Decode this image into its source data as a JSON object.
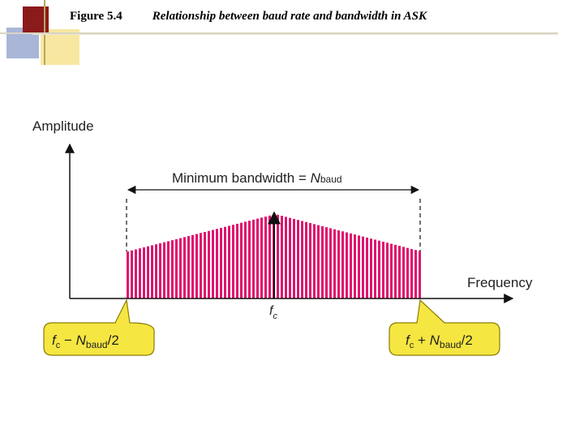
{
  "header": {
    "figure_number": "Figure 5.4",
    "figure_title": "Relationship between baud rate and bandwidth in ASK"
  },
  "diagram": {
    "y_axis_label": "Amplitude",
    "x_axis_label": "Frequency",
    "bandwidth_label_text": "Minimum bandwidth = ",
    "bandwidth_label_var": "N",
    "bandwidth_label_sub": "baud",
    "center_label": "f",
    "center_label_sub": "c",
    "left_callout": {
      "f": "f",
      "f_sub": "c",
      "op": " − ",
      "n": "N",
      "n_sub": "baud",
      "tail": "/2"
    },
    "right_callout": {
      "f": "f",
      "f_sub": "c",
      "op": " + ",
      "n": "N",
      "n_sub": "baud",
      "tail": "/2"
    },
    "colors": {
      "spectrum": "#e0136e",
      "callout_fill": "#f5e642",
      "callout_stroke": "#8a7d00",
      "axis": "#111111"
    }
  }
}
